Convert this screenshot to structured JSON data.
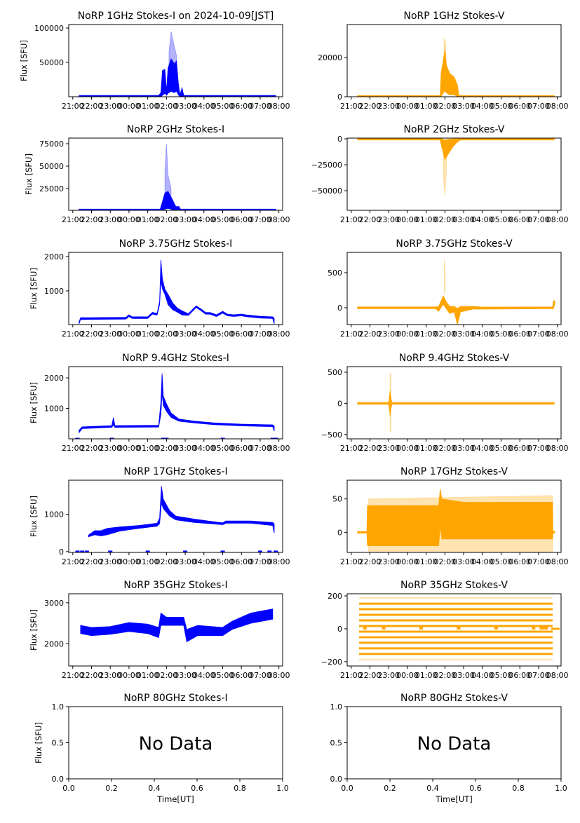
{
  "time_axis": {
    "xlim": [
      "20:47",
      "08:12"
    ],
    "ticks": [
      "21:00",
      "22:00",
      "23:00",
      "00:00",
      "01:00",
      "02:00",
      "03:00",
      "04:00",
      "05:00",
      "06:00",
      "07:00",
      "08:00"
    ]
  },
  "colors": {
    "stokes_i": "#0000ff",
    "stokes_v": "#ffa500"
  },
  "chart_data": [
    {
      "type": "scatter",
      "title": "NoRP 1GHz Stokes-I on 2024-10-09[JST]",
      "ylabel": "Flux [SFU]",
      "color": "#0000ff",
      "ylim": [
        0,
        105100
      ],
      "yticks": [
        50000,
        100000
      ],
      "ytick_labels": [
        "50000",
        "100000"
      ],
      "dense": [
        [
          "21:20",
          0,
          1200
        ],
        [
          "01:35",
          0,
          1200
        ],
        [
          "01:42",
          0,
          6000
        ],
        [
          "01:47",
          2000,
          38000
        ],
        [
          "01:55",
          5000,
          40000
        ],
        [
          "02:00",
          2000,
          8000
        ],
        [
          "02:05",
          5000,
          42000
        ],
        [
          "02:15",
          8000,
          55000
        ],
        [
          "02:25",
          6000,
          48000
        ],
        [
          "02:32",
          8000,
          52000
        ],
        [
          "02:38",
          3000,
          20000
        ],
        [
          "02:43",
          0,
          3000
        ],
        [
          "02:50",
          0,
          13000
        ],
        [
          "02:55",
          0,
          2000
        ],
        [
          "03:00",
          0,
          1200
        ],
        [
          "07:50",
          0,
          1200
        ]
      ],
      "sparse": [
        [
          "02:08",
          40000,
          65000
        ],
        [
          "02:15",
          50000,
          95000
        ],
        [
          "02:22",
          45000,
          80000
        ],
        [
          "02:32",
          50000,
          60000
        ]
      ]
    },
    {
      "type": "scatter",
      "title": "NoRP 1GHz Stokes-V",
      "ylabel": "",
      "color": "#ffa500",
      "ylim": [
        0,
        36800
      ],
      "yticks": [
        0,
        20000
      ],
      "ytick_labels": [
        "0",
        "20000"
      ],
      "dense": [
        [
          "21:20",
          0,
          300
        ],
        [
          "01:45",
          0,
          300
        ],
        [
          "01:48",
          0,
          12000
        ],
        [
          "01:55",
          2000,
          19000
        ],
        [
          "02:00",
          3000,
          24000
        ],
        [
          "02:05",
          2000,
          16000
        ],
        [
          "02:15",
          1000,
          12000
        ],
        [
          "02:30",
          1000,
          10000
        ],
        [
          "02:40",
          0,
          6000
        ],
        [
          "02:45",
          0,
          300
        ],
        [
          "07:50",
          0,
          300
        ]
      ],
      "sparse": [
        [
          "01:57",
          20000,
          30000
        ],
        [
          "02:03",
          18000,
          27000
        ]
      ]
    },
    {
      "type": "scatter",
      "title": "NoRP 2GHz Stokes-I",
      "ylabel": "Flux [SFU]",
      "color": "#0000ff",
      "ylim": [
        800,
        81250
      ],
      "yticks": [
        25000,
        50000,
        75000
      ],
      "ytick_labels": [
        "25000",
        "50000",
        "75000"
      ],
      "dense": [
        [
          "21:20",
          800,
          1500
        ],
        [
          "01:40",
          800,
          1500
        ],
        [
          "01:45",
          800,
          8000
        ],
        [
          "01:55",
          2000,
          20000
        ],
        [
          "02:05",
          3000,
          22000
        ],
        [
          "02:20",
          1500,
          12000
        ],
        [
          "02:30",
          1000,
          5000
        ],
        [
          "02:40",
          800,
          5000
        ],
        [
          "02:45",
          800,
          1500
        ],
        [
          "07:50",
          800,
          1500
        ]
      ],
      "sparse": [
        [
          "01:55",
          15000,
          45000
        ],
        [
          "02:00",
          20000,
          75000
        ],
        [
          "02:05",
          15000,
          40000
        ],
        [
          "02:15",
          8000,
          25000
        ]
      ]
    },
    {
      "type": "scatter",
      "title": "NoRP 2GHz Stokes-V",
      "ylabel": "",
      "color": "#ffa500",
      "ylim": [
        -68900,
        700
      ],
      "yticks": [
        -50000,
        -25000,
        0
      ],
      "ytick_labels": [
        "−50000",
        "−25000",
        "0"
      ],
      "dense": [
        [
          "21:20",
          -700,
          200
        ],
        [
          "01:45",
          -700,
          200
        ],
        [
          "01:50",
          -8000,
          0
        ],
        [
          "02:00",
          -20000,
          -1000
        ],
        [
          "02:10",
          -15000,
          -500
        ],
        [
          "02:25",
          -8000,
          0
        ],
        [
          "02:40",
          -3000,
          0
        ],
        [
          "02:50",
          -700,
          200
        ],
        [
          "07:50",
          -700,
          200
        ]
      ],
      "sparse": [
        [
          "01:55",
          -35000,
          -10000
        ],
        [
          "02:00",
          -55000,
          -15000
        ],
        [
          "02:05",
          -30000,
          -8000
        ]
      ]
    },
    {
      "type": "scatter",
      "title": "NoRP 3.75GHz Stokes-I",
      "ylabel": "Flux [SFU]",
      "color": "#0000ff",
      "ylim": [
        20,
        2120
      ],
      "yticks": [
        1000,
        2000
      ],
      "ytick_labels": [
        "1000",
        "2000"
      ],
      "dense": [
        [
          "21:20",
          40,
          100
        ],
        [
          "21:25",
          180,
          210
        ],
        [
          "23:50",
          190,
          220
        ],
        [
          "00:00",
          260,
          300
        ],
        [
          "00:10",
          200,
          240
        ],
        [
          "01:00",
          200,
          240
        ],
        [
          "01:15",
          330,
          370
        ],
        [
          "01:30",
          300,
          340
        ],
        [
          "01:38",
          600,
          700
        ],
        [
          "01:42",
          1300,
          1900
        ],
        [
          "01:47",
          1050,
          1350
        ],
        [
          "01:55",
          900,
          1050
        ],
        [
          "02:05",
          600,
          900
        ],
        [
          "02:20",
          450,
          650
        ],
        [
          "02:35",
          380,
          500
        ],
        [
          "02:50",
          300,
          420
        ],
        [
          "03:10",
          290,
          330
        ],
        [
          "03:35",
          520,
          560
        ],
        [
          "03:50",
          430,
          480
        ],
        [
          "04:05",
          330,
          370
        ],
        [
          "04:20",
          330,
          360
        ],
        [
          "04:40",
          260,
          300
        ],
        [
          "05:00",
          360,
          400
        ],
        [
          "05:15",
          280,
          320
        ],
        [
          "05:35",
          260,
          300
        ],
        [
          "06:00",
          280,
          320
        ],
        [
          "06:15",
          260,
          290
        ],
        [
          "07:00",
          220,
          250
        ],
        [
          "07:40",
          200,
          240
        ],
        [
          "07:45",
          40,
          200
        ]
      ],
      "sparse": []
    },
    {
      "type": "scatter",
      "title": "NoRP 3.75GHz Stokes-V",
      "ylabel": "",
      "color": "#ffa500",
      "ylim": [
        -240,
        790
      ],
      "yticks": [
        0,
        500
      ],
      "ytick_labels": [
        "0",
        "500"
      ],
      "dense": [
        [
          "21:20",
          -10,
          10
        ],
        [
          "01:30",
          -10,
          10
        ],
        [
          "01:40",
          -50,
          20
        ],
        [
          "01:55",
          50,
          170
        ],
        [
          "02:05",
          -20,
          80
        ],
        [
          "02:15",
          -80,
          20
        ],
        [
          "02:30",
          -60,
          20
        ],
        [
          "02:40",
          -240,
          -10
        ],
        [
          "02:50",
          -60,
          20
        ],
        [
          "03:30",
          -20,
          20
        ],
        [
          "04:00",
          -20,
          10
        ],
        [
          "07:45",
          -10,
          10
        ],
        [
          "07:48",
          -10,
          100
        ],
        [
          "07:52",
          60,
          100
        ]
      ],
      "sparse": [
        [
          "01:58",
          200,
          700
        ],
        [
          "02:01",
          250,
          500
        ]
      ]
    },
    {
      "type": "scatter",
      "title": "NoRP 9.4GHz Stokes-I",
      "ylabel": "Flux [SFU]",
      "color": "#0000ff",
      "ylim": [
        0,
        2370
      ],
      "yticks": [
        1000,
        2000
      ],
      "ytick_labels": [
        "1000",
        "2000"
      ],
      "dense": [
        [
          "21:20",
          200,
          280
        ],
        [
          "21:30",
          340,
          390
        ],
        [
          "23:05",
          380,
          430
        ],
        [
          "23:10",
          450,
          700
        ],
        [
          "23:15",
          380,
          430
        ],
        [
          "01:35",
          390,
          440
        ],
        [
          "01:42",
          800,
          1200
        ],
        [
          "01:46",
          1500,
          2150
        ],
        [
          "01:50",
          1100,
          1400
        ],
        [
          "02:00",
          900,
          1150
        ],
        [
          "02:15",
          700,
          850
        ],
        [
          "02:40",
          580,
          650
        ],
        [
          "03:30",
          520,
          580
        ],
        [
          "04:30",
          470,
          520
        ],
        [
          "06:00",
          430,
          480
        ],
        [
          "07:40",
          400,
          460
        ],
        [
          "07:45",
          250,
          420
        ]
      ],
      "sparse": [],
      "zeros": [
        "21:15",
        "23:05",
        "01:50",
        "02:00",
        "05:00",
        "07:40",
        "07:50"
      ]
    },
    {
      "type": "scatter",
      "title": "NoRP 9.4GHz Stokes-V",
      "ylabel": "",
      "color": "#ffa500",
      "ylim": [
        -570,
        590
      ],
      "yticks": [
        -500,
        0,
        500
      ],
      "ytick_labels": [
        "−500",
        "0",
        "500"
      ],
      "dense": [
        [
          "21:20",
          -15,
          15
        ],
        [
          "23:00",
          -15,
          15
        ],
        [
          "23:05",
          -200,
          200
        ],
        [
          "23:07",
          -100,
          100
        ],
        [
          "23:10",
          -15,
          15
        ],
        [
          "07:50",
          -15,
          15
        ]
      ],
      "sparse": [
        [
          "23:04",
          -450,
          480
        ],
        [
          "23:07",
          -450,
          480
        ]
      ]
    },
    {
      "type": "scatter",
      "title": "NoRP 17GHz Stokes-I",
      "ylabel": "Flux [SFU]",
      "color": "#0000ff",
      "ylim": [
        -20,
        1910
      ],
      "yticks": [
        0,
        1000
      ],
      "ytick_labels": [
        "0",
        "1000"
      ],
      "dense": [
        [
          "21:50",
          400,
          440
        ],
        [
          "22:10",
          450,
          560
        ],
        [
          "22:30",
          420,
          560
        ],
        [
          "22:50",
          450,
          620
        ],
        [
          "23:30",
          550,
          660
        ],
        [
          "00:30",
          620,
          700
        ],
        [
          "01:30",
          680,
          760
        ],
        [
          "01:38",
          750,
          900
        ],
        [
          "01:44",
          1300,
          1750
        ],
        [
          "01:50",
          1150,
          1400
        ],
        [
          "02:10",
          950,
          1100
        ],
        [
          "02:30",
          850,
          950
        ],
        [
          "03:30",
          780,
          870
        ],
        [
          "04:30",
          740,
          800
        ],
        [
          "05:00",
          720,
          770
        ],
        [
          "05:10",
          760,
          820
        ],
        [
          "06:30",
          760,
          820
        ],
        [
          "07:40",
          700,
          780
        ],
        [
          "07:45",
          500,
          740
        ]
      ],
      "sparse": [],
      "zeros": [
        "21:15",
        "21:30",
        "21:45",
        "23:00",
        "01:00",
        "03:00",
        "05:00",
        "07:00",
        "07:30",
        "07:50"
      ]
    },
    {
      "type": "scatter",
      "title": "NoRP 17GHz Stokes-V",
      "ylabel": "",
      "color": "#ffa500",
      "ylim": [
        -30,
        78
      ],
      "yticks": [
        0,
        50
      ],
      "ytick_labels": [
        "0",
        "50"
      ],
      "dense": [
        [
          "21:20",
          -1,
          1
        ],
        [
          "21:50",
          -1,
          1
        ],
        [
          "21:52",
          -20,
          40
        ],
        [
          "01:40",
          -20,
          40
        ],
        [
          "01:45",
          10,
          65
        ],
        [
          "01:50",
          -10,
          50
        ],
        [
          "03:00",
          -10,
          45
        ],
        [
          "07:45",
          -10,
          45
        ],
        [
          "07:46",
          -1,
          1
        ],
        [
          "07:52",
          -1,
          1
        ]
      ],
      "sparse": [
        [
          "21:55",
          -30,
          50
        ],
        [
          "07:45",
          -30,
          55
        ]
      ]
    },
    {
      "type": "scatter",
      "title": "NoRP 35GHz Stokes-I",
      "ylabel": "Flux [SFU]",
      "color": "#0000ff",
      "ylim": [
        1460,
        3220
      ],
      "yticks": [
        2000,
        3000
      ],
      "ytick_labels": [
        "2000",
        "3000"
      ],
      "dense": [
        [
          "21:25",
          2250,
          2450
        ],
        [
          "22:00",
          2200,
          2400
        ],
        [
          "23:00",
          2230,
          2420
        ],
        [
          "00:00",
          2300,
          2520
        ],
        [
          "01:00",
          2250,
          2480
        ],
        [
          "01:35",
          2150,
          2400
        ],
        [
          "01:42",
          2450,
          2750
        ],
        [
          "02:00",
          2450,
          2650
        ],
        [
          "02:55",
          2450,
          2650
        ],
        [
          "03:05",
          2050,
          2350
        ],
        [
          "03:40",
          2200,
          2450
        ],
        [
          "05:00",
          2200,
          2400
        ],
        [
          "05:30",
          2350,
          2550
        ],
        [
          "06:30",
          2500,
          2750
        ],
        [
          "07:40",
          2600,
          2850
        ]
      ],
      "sparse": []
    },
    {
      "type": "scatter",
      "title": "NoRP 35GHz Stokes-V",
      "ylabel": "",
      "color": "#ffa500",
      "ylim": [
        -226,
        213
      ],
      "yticks": [
        -200,
        0,
        200
      ],
      "ytick_labels": [
        "−200",
        "0",
        "200"
      ],
      "levels": [
        -187,
        -153,
        -119,
        -85,
        -51,
        -17,
        17,
        51,
        85,
        119,
        153,
        187
      ],
      "level_span": [
        "21:25",
        "07:45"
      ],
      "zeros": [
        "21:45",
        "22:45",
        "00:45",
        "02:45",
        "04:45",
        "06:45",
        "07:10",
        "07:20",
        "07:25"
      ],
      "dense": [],
      "sparse": []
    },
    {
      "type": "scatter",
      "title": "NoRP 80GHz Stokes-I",
      "ylabel": "Flux [SFU]",
      "xlabel": "Time[UT]",
      "no_data": "No Data",
      "xlim": [
        0,
        1
      ],
      "ylim": [
        0,
        1
      ],
      "xticks": [
        0,
        0.2,
        0.4,
        0.6,
        0.8,
        1.0
      ],
      "xtick_labels": [
        "0.0",
        "0.2",
        "0.4",
        "0.6",
        "0.8",
        "1.0"
      ],
      "yticks": [
        0,
        0.5,
        1.0
      ],
      "ytick_labels": [
        "0.0",
        "0.5",
        "1.0"
      ]
    },
    {
      "type": "scatter",
      "title": "NoRP 80GHz Stokes-V",
      "ylabel": "",
      "xlabel": "Time[UT]",
      "no_data": "No Data",
      "xlim": [
        0,
        1
      ],
      "ylim": [
        0,
        1
      ],
      "xticks": [
        0,
        0.2,
        0.4,
        0.6,
        0.8,
        1.0
      ],
      "xtick_labels": [
        "0.0",
        "0.2",
        "0.4",
        "0.6",
        "0.8",
        "1.0"
      ],
      "yticks": [
        0,
        0.5,
        1.0
      ],
      "ytick_labels": [
        "0.0",
        "0.5",
        "1.0"
      ]
    }
  ]
}
